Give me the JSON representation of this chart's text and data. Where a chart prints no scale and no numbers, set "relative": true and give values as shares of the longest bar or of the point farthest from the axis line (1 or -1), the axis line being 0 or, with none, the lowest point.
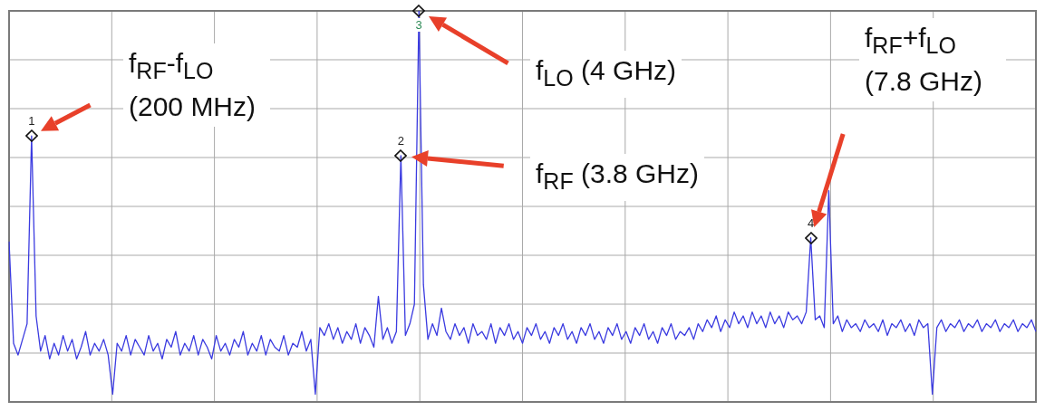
{
  "chart_data": {
    "type": "line",
    "relative": true,
    "grid": true,
    "legend": false,
    "tick_labels": false,
    "categories": [
      null,
      null,
      null,
      null,
      null,
      null,
      null,
      null,
      null,
      null,
      null,
      null,
      null,
      null,
      null,
      null,
      null,
      null,
      null,
      null,
      null,
      null,
      null,
      null,
      null,
      null,
      null,
      null,
      null,
      null,
      null,
      null,
      null,
      null,
      null,
      null,
      null,
      null,
      null,
      null,
      null,
      null,
      null,
      null,
      null,
      null,
      null,
      null,
      null,
      null,
      null,
      null,
      null,
      null,
      null,
      null,
      null,
      null,
      null,
      null,
      null,
      null,
      null,
      null,
      null,
      null,
      null,
      null,
      null,
      null,
      null,
      null,
      null,
      null,
      null,
      null,
      null,
      null,
      null,
      null,
      null,
      null,
      null,
      null,
      null,
      null,
      null,
      null,
      null,
      null,
      null,
      null,
      null,
      null,
      null,
      null,
      null,
      null,
      null,
      null,
      null,
      null,
      null,
      null,
      null,
      null,
      null,
      null,
      null,
      null,
      null,
      null,
      null,
      null,
      null,
      null,
      null,
      null,
      null,
      null,
      null,
      null,
      null,
      null,
      null,
      null,
      null,
      null,
      null,
      null,
      null,
      null,
      null,
      null,
      null,
      null,
      null,
      null,
      null,
      null,
      null,
      null,
      null,
      null,
      null,
      null,
      null,
      null,
      null,
      null,
      null,
      null,
      null,
      null,
      null,
      null,
      null,
      null,
      null,
      null,
      null,
      null,
      null,
      null,
      null,
      null,
      null,
      null,
      null,
      null,
      null,
      null,
      null,
      null,
      null,
      null,
      null,
      null,
      null,
      null,
      null,
      null,
      null,
      null,
      null,
      null,
      null,
      null,
      null,
      null,
      null,
      null,
      null,
      null,
      null,
      null,
      null,
      null,
      null,
      null,
      null,
      null,
      null,
      null,
      null,
      null,
      null,
      null,
      null,
      null,
      null,
      null,
      null,
      null,
      null,
      null,
      null,
      null,
      null,
      null,
      null,
      null,
      null,
      null,
      null,
      null,
      null,
      null,
      null
    ],
    "series": [
      {
        "color": "#3b3be0",
        "values": [
          0.41,
          0.15,
          0.12,
          0.16,
          0.2,
          0.68,
          0.22,
          0.13,
          0.17,
          0.11,
          0.15,
          0.12,
          0.17,
          0.13,
          0.16,
          0.11,
          0.14,
          0.18,
          0.12,
          0.15,
          0.13,
          0.16,
          0.12,
          0.02,
          0.15,
          0.13,
          0.17,
          0.12,
          0.16,
          0.14,
          0.12,
          0.17,
          0.13,
          0.15,
          0.11,
          0.16,
          0.14,
          0.18,
          0.12,
          0.15,
          0.13,
          0.17,
          0.12,
          0.16,
          0.14,
          0.11,
          0.17,
          0.13,
          0.15,
          0.12,
          0.16,
          0.14,
          0.18,
          0.12,
          0.15,
          0.13,
          0.17,
          0.12,
          0.16,
          0.14,
          0.13,
          0.17,
          0.12,
          0.15,
          0.14,
          0.18,
          0.13,
          0.16,
          0.02,
          0.19,
          0.17,
          0.2,
          0.16,
          0.19,
          0.15,
          0.18,
          0.16,
          0.2,
          0.15,
          0.19,
          0.17,
          0.14,
          0.27,
          0.16,
          0.19,
          0.15,
          0.18,
          0.63,
          0.17,
          0.2,
          0.25,
          1,
          0.3,
          0.16,
          0.2,
          0.17,
          0.24,
          0.18,
          0.16,
          0.2,
          0.17,
          0.19,
          0.15,
          0.2,
          0.17,
          0.18,
          0.16,
          0.2,
          0.15,
          0.19,
          0.17,
          0.2,
          0.16,
          0.18,
          0.15,
          0.19,
          0.17,
          0.2,
          0.16,
          0.18,
          0.15,
          0.19,
          0.17,
          0.2,
          0.16,
          0.18,
          0.15,
          0.19,
          0.17,
          0.2,
          0.16,
          0.18,
          0.15,
          0.19,
          0.17,
          0.2,
          0.16,
          0.18,
          0.15,
          0.19,
          0.17,
          0.2,
          0.16,
          0.18,
          0.15,
          0.19,
          0.17,
          0.2,
          0.16,
          0.18,
          0.17,
          0.19,
          0.16,
          0.2,
          0.18,
          0.21,
          0.19,
          0.22,
          0.18,
          0.21,
          0.19,
          0.23,
          0.2,
          0.22,
          0.19,
          0.23,
          0.2,
          0.22,
          0.19,
          0.23,
          0.2,
          0.22,
          0.19,
          0.23,
          0.21,
          0.22,
          0.2,
          0.23,
          0.42,
          0.21,
          0.22,
          0.19,
          0.54,
          0.2,
          0.22,
          0.18,
          0.21,
          0.19,
          0.2,
          0.18,
          0.21,
          0.19,
          0.2,
          0.18,
          0.21,
          0.17,
          0.2,
          0.19,
          0.21,
          0.18,
          0.2,
          0.17,
          0.21,
          0.19,
          0.2,
          0.02,
          0.19,
          0.21,
          0.18,
          0.2,
          0.19,
          0.21,
          0.18,
          0.2,
          0.19,
          0.21,
          0.18,
          0.2,
          0.19,
          0.21,
          0.18,
          0.2,
          0.19,
          0.21,
          0.18,
          0.2,
          0.19,
          0.21,
          0.18
        ]
      }
    ],
    "annotations": [
      "1",
      "2",
      "3",
      "4",
      "f$_{RF}$-f$_{LO}$ (200 MHz)",
      "f$_{LO}$ (4 GHz)",
      "f$_{RF}$ (3.8 GHz)",
      "f$_{RF}$+f$_{LO}$ (7.8 GHz)"
    ]
  }
}
